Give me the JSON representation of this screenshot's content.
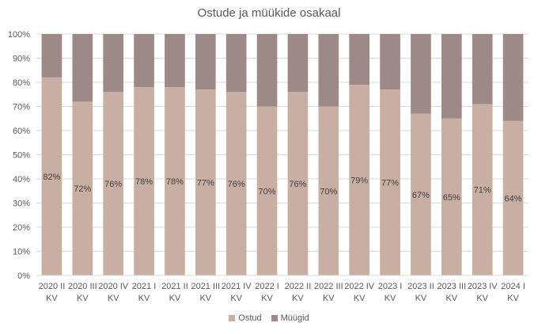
{
  "chart_data": {
    "type": "bar",
    "stacked": true,
    "title": "Ostude ja müükide osakaal",
    "categories": [
      "2020 II KV",
      "2020 III KV",
      "2020 IV KV",
      "2021 I KV",
      "2021 II KV",
      "2021 III KV",
      "2021 IV KV",
      "2022 I KV",
      "2022 II KV",
      "2022 III KV",
      "2022 IV KV",
      "2023 I KV",
      "2023 II KV",
      "2023 III KV",
      "2023 IV KV",
      "2024 I KV"
    ],
    "series": [
      {
        "name": "Ostud",
        "color": "#c9aea3",
        "values": [
          82,
          72,
          76,
          78,
          78,
          77,
          76,
          70,
          76,
          70,
          79,
          77,
          67,
          65,
          71,
          64
        ],
        "labels": [
          "82%",
          "72%",
          "76%",
          "78%",
          "78%",
          "77%",
          "76%",
          "70%",
          "76%",
          "70%",
          "79%",
          "77%",
          "67%",
          "65%",
          "71%",
          "64%"
        ]
      },
      {
        "name": "Müügid",
        "color": "#9d8a87",
        "values": [
          18,
          28,
          24,
          22,
          22,
          23,
          24,
          30,
          24,
          30,
          21,
          23,
          33,
          35,
          29,
          36
        ]
      }
    ],
    "ylim": [
      0,
      100
    ],
    "yticks": [
      0,
      10,
      20,
      30,
      40,
      50,
      60,
      70,
      80,
      90,
      100
    ],
    "ytick_labels": [
      "0%",
      "10%",
      "20%",
      "30%",
      "40%",
      "50%",
      "60%",
      "70%",
      "80%",
      "90%",
      "100%"
    ],
    "grid": true,
    "legend": "bottom"
  }
}
